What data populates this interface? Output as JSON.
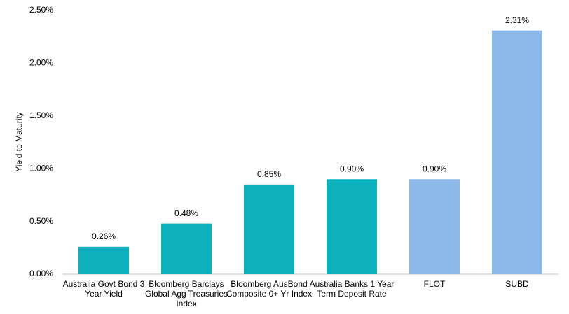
{
  "chart_data": {
    "type": "bar",
    "y_label": "Yield to Maturity",
    "categories": [
      "Australia Govt Bond 3 Year Yield",
      "Bloomberg Barclays Global Agg Treasuries Index",
      "Bloomberg AusBond Composite 0+ Yr Index",
      "Australia Banks 1 Year Term Deposit Rate",
      "FLOT",
      "SUBD"
    ],
    "values": [
      0.26,
      0.48,
      0.85,
      0.9,
      0.9,
      2.31
    ],
    "value_labels": [
      "0.26%",
      "0.48%",
      "0.85%",
      "0.90%",
      "0.90%",
      "2.31%"
    ],
    "colors": [
      "#0db1be",
      "#0db1be",
      "#0db1be",
      "#0db1be",
      "#8db9e8",
      "#8db9e8"
    ],
    "ylim": [
      0,
      2.5
    ],
    "yticks": [
      {
        "value": 0,
        "label": "0.00%"
      },
      {
        "value": 0.5,
        "label": "0.50%"
      },
      {
        "value": 1,
        "label": "1.00%"
      },
      {
        "value": 1.5,
        "label": "1.50%"
      },
      {
        "value": 2,
        "label": "2.00%"
      },
      {
        "value": 2.5,
        "label": "2.50%"
      }
    ],
    "grid": false
  }
}
